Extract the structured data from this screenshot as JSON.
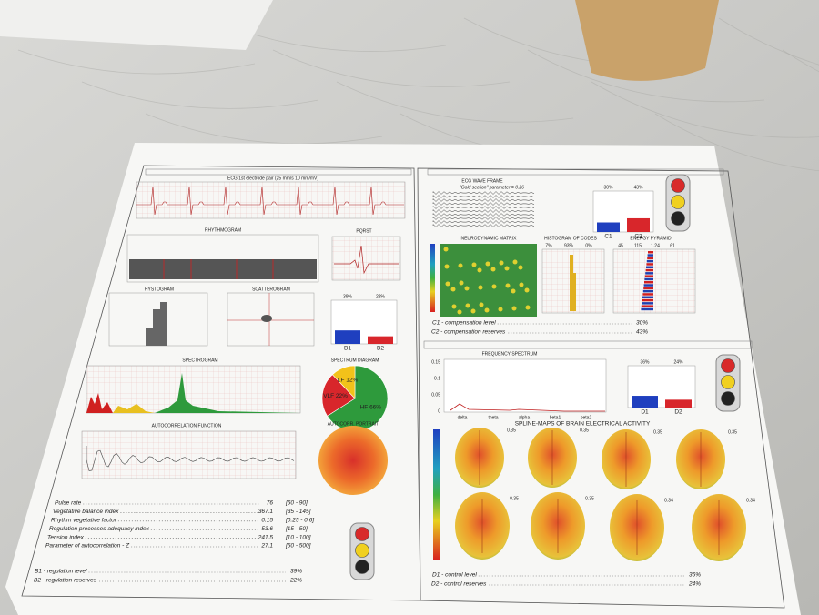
{
  "left_panel": {
    "ecg_title": "ECG 1st electrode pair (25 mm/s 10 mm/mV)",
    "rhythmogram": "RHYTHMOGRAM",
    "pqrst": "PQRST",
    "hystogram": "HYSTOGRAM",
    "scatterogram": "SCATTEROGRAM",
    "b_bars": {
      "labels": [
        "B1",
        "B2"
      ],
      "values": [
        39,
        22
      ],
      "value_labels": [
        "39%",
        "22%"
      ],
      "colors": [
        "#1f3fbf",
        "#d8262b"
      ]
    },
    "spectrogram": "SPECTROGRAM",
    "spectrum_diagram": {
      "title": "SPECTRUM DIAGRAM",
      "slices": [
        {
          "label": "HF 66%",
          "value": 66,
          "color": "#2e9a3c"
        },
        {
          "label": "VLF 22%",
          "value": 22,
          "color": "#d8262b"
        },
        {
          "label": "LF 12%",
          "value": 12,
          "color": "#f2c21a"
        }
      ]
    },
    "autocorrelation": "AUTOCORRELATION FUNCTION",
    "autocorr_portrait": "AUTOCORR. PORTRAIT",
    "parameters": [
      {
        "name": "Pulse rate",
        "value": "76",
        "range": "[60 - 90]"
      },
      {
        "name": "Vegetative balance index",
        "value": "367.1",
        "range": "[35 - 145]"
      },
      {
        "name": "Rhythm vegetative factor",
        "value": "0.15",
        "range": "[0.25 - 0.6]"
      },
      {
        "name": "Regulation processes adequacy index",
        "value": "53.6",
        "range": "[15 - 50]"
      },
      {
        "name": "Tension index",
        "value": "241.5",
        "range": "[10 - 100]"
      },
      {
        "name": "Parameter of autocorrelation - Z",
        "value": "27.1",
        "range": "[50 - 500]"
      }
    ],
    "levels": [
      {
        "name": "B1 - regulation level",
        "value": "39%"
      },
      {
        "name": "B2 - regulation reserves",
        "value": "22%"
      }
    ]
  },
  "right_panel": {
    "ecg_wave_frame": "ECG WAVE FRAME",
    "gold_section": "\"Gold section\" parameter = 0.26",
    "c_bars": {
      "labels": [
        "C1",
        "C2"
      ],
      "values": [
        30,
        43
      ],
      "value_labels": [
        "30%",
        "43%"
      ],
      "colors": [
        "#1f3fbf",
        "#d8262b"
      ]
    },
    "neurodynamic": "NEURODYNAMIC MATRIX",
    "histogram_codes": {
      "title": "HISTOGRAM OF CODES",
      "labels": [
        "7%",
        "93%",
        "0%"
      ]
    },
    "energy_pyramid": {
      "title": "ENERGY PYRAMID",
      "labels": [
        "45",
        "115",
        "1.24",
        "61"
      ]
    },
    "c_levels": [
      {
        "name": "C1 - compensation level",
        "value": "30%"
      },
      {
        "name": "C2 - compensation reserves",
        "value": "43%"
      }
    ],
    "frequency_spectrum": {
      "title": "FREQUENCY SPECTRUM",
      "bands": [
        "delta",
        "theta",
        "alpha",
        "beta1",
        "beta2"
      ],
      "yticks": [
        "0.15",
        "0.1",
        "0.05",
        "0"
      ]
    },
    "d_bars": {
      "labels": [
        "D1",
        "D2"
      ],
      "values": [
        36,
        24
      ],
      "value_labels": [
        "36%",
        "24%"
      ],
      "colors": [
        "#1f3fbf",
        "#d8262b"
      ]
    },
    "spline_title": "SPLINE-MAPS OF BRAIN ELECTRICAL ACTIVITY",
    "spline_values": [
      "0.35",
      "0.35",
      "0.35",
      "0.35",
      "0.35",
      "0.35",
      "0.34",
      "0.34"
    ],
    "d_levels": [
      {
        "name": "D1 - control level",
        "value": "36%"
      },
      {
        "name": "D2 - control reserves",
        "value": "24%"
      }
    ]
  }
}
